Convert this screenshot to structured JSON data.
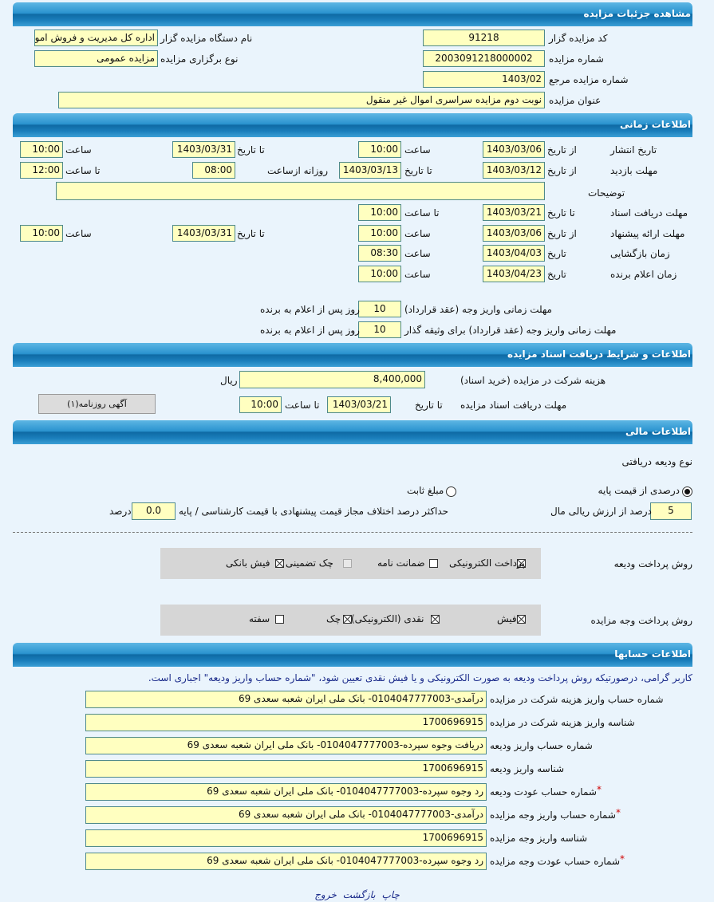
{
  "colors": {
    "header": "#1b7fbc",
    "field_bg": "#ffffc0",
    "page_bg": "#eaf4fc",
    "notice": "#1a2a8a",
    "required": "#d00000"
  },
  "details": {
    "header": "مشاهده جزئیات مزایده",
    "code_label": "کد مزایده گزار",
    "code": "91218",
    "agency_label": "نام دستگاه مزایده گزار",
    "agency": "اداره کل مدیریت و فروش اموال",
    "number_label": "شماره مزایده",
    "number": "2003091218000002",
    "type_label": "نوع برگزاری مزایده",
    "type": "مزایده عمومی",
    "ref_label": "شماره مزایده مرجع",
    "ref": "1403/02",
    "title_label": "عنوان مزایده",
    "title": "نوبت دوم مزایده سراسری اموال غیر منقول"
  },
  "timing": {
    "header": "اطلاعات زمانی",
    "from_date": "از تاریخ",
    "to_date": "تا تاریخ",
    "time": "ساعت",
    "to_time": "تا ساعت",
    "date": "تاریخ",
    "daily_from": "روزانه ازساعت",
    "publish": {
      "label": "تاریخ انتشار",
      "from": "1403/03/06",
      "from_time": "10:00",
      "to": "1403/03/31",
      "to_time": "10:00"
    },
    "visit": {
      "label": "مهلت بازدید",
      "from": "1403/03/12",
      "to": "1403/03/13",
      "daily_from": "08:00",
      "daily_to": "12:00"
    },
    "notes": {
      "label": "توضیحات",
      "value": ""
    },
    "docs": {
      "label": "مهلت دریافت اسناد",
      "to": "1403/03/21",
      "to_time": "10:00"
    },
    "offer": {
      "label": "مهلت ارائه پیشنهاد",
      "from": "1403/03/06",
      "from_time": "10:00",
      "to": "1403/03/31",
      "to_time": "10:00"
    },
    "opening": {
      "label": "زمان بازگشایی",
      "date": "1403/04/03",
      "time": "08:30"
    },
    "winner": {
      "label": "زمان اعلام برنده",
      "date": "1403/04/23",
      "time": "10:00"
    },
    "pay_contract": {
      "label": "مهلت زمانی واریز وجه (عقد قرارداد)",
      "days": "10",
      "suffix": "روز پس از اعلام به برنده"
    },
    "pay_pledger": {
      "label": "مهلت زمانی واریز وجه (عقد قرارداد) برای وثیقه گذار",
      "days": "10",
      "suffix": "روز پس از اعلام به برنده"
    }
  },
  "documents": {
    "header": "اطلاعات و شرایط دریافت اسناد مزایده",
    "fee_label": "هزینه شرکت در مزایده (خرید اسناد)",
    "fee": "8,400,000",
    "currency": "ریال",
    "deadline_label": "مهلت دریافت اسناد مزایده",
    "to_date_label": "تا تاریخ",
    "to_date": "1403/03/21",
    "to_time_label": "تا ساعت",
    "to_time": "10:00",
    "newspaper_button": "آگهی روزنامه(۱)"
  },
  "financial": {
    "header": "اطلاعات مالی",
    "deposit_type_label": "نوع ودیعه دریافتی",
    "radio_percent": "درصدی از قیمت پایه",
    "radio_fixed": "مبلغ ثابت",
    "selected": "percent",
    "percent": "5",
    "percent_suffix": "درصد از ارزش ریالی مال",
    "max_diff_label": "حداکثر درصد اختلاف مجاز قیمت پیشنهادی با قیمت کارشناسی / پایه",
    "max_diff": "0.0",
    "max_diff_suffix": "درصد",
    "deposit_method_label": "روش پرداخت ودیعه",
    "deposit_methods": [
      {
        "label": "پرداخت الکترونیکی",
        "checked": true
      },
      {
        "label": "ضمانت نامه",
        "checked": false
      },
      {
        "label": "چک تضمینی",
        "checked": false,
        "disabled": true
      },
      {
        "label": "فیش بانکی",
        "checked": true
      }
    ],
    "payment_method_label": "روش پرداخت وجه مزایده",
    "payment_methods": [
      {
        "label": "فیش",
        "checked": true
      },
      {
        "label": "نقدی (الکترونیکی)",
        "checked": true
      },
      {
        "label": "چک",
        "checked": true
      },
      {
        "label": "سفته",
        "checked": false
      }
    ]
  },
  "accounts": {
    "header": "اطلاعات حسابها",
    "notice": "کاربر گرامی، درصورتیکه روش پرداخت ودیعه به صورت الکترونیکی و یا فیش نقدی تعیین شود، \"شماره حساب واریز ودیعه\" اجباری است.",
    "rows": [
      {
        "label": "شماره حساب واریز هزینه شرکت در مزایده",
        "value": "درآمدی-0104047777003- بانک ملی ایران شعبه سعدی 69",
        "required": false
      },
      {
        "label": "شناسه واریز هزینه شرکت در مزایده",
        "value": "1700696915",
        "required": false
      },
      {
        "label": "شماره حساب واریز ودیعه",
        "value": "دریافت وجوه سپرده-0104047777003- بانک ملی ایران شعبه سعدی 69",
        "required": false
      },
      {
        "label": "شناسه واریز ودیعه",
        "value": "1700696915",
        "required": false
      },
      {
        "label": "شماره حساب عودت ودیعه",
        "value": "رد وجوه سپرده-0104047777003- بانک ملی ایران شعبه سعدی 69",
        "required": true
      },
      {
        "label": "شماره حساب واریز وجه مزایده",
        "value": "درآمدی-0104047777003- بانک ملی ایران شعبه سعدی 69",
        "required": true
      },
      {
        "label": "شناسه واریز وجه مزایده",
        "value": "1700696915",
        "required": false
      },
      {
        "label": "شماره حساب عودت وجه مزایده",
        "value": "رد وجوه سپرده-0104047777003- بانک ملی ایران شعبه سعدی 69",
        "required": true
      }
    ],
    "required_mark": "*"
  },
  "footer": {
    "print": "چاپ",
    "back": "بازگشت",
    "exit": "خروج"
  }
}
